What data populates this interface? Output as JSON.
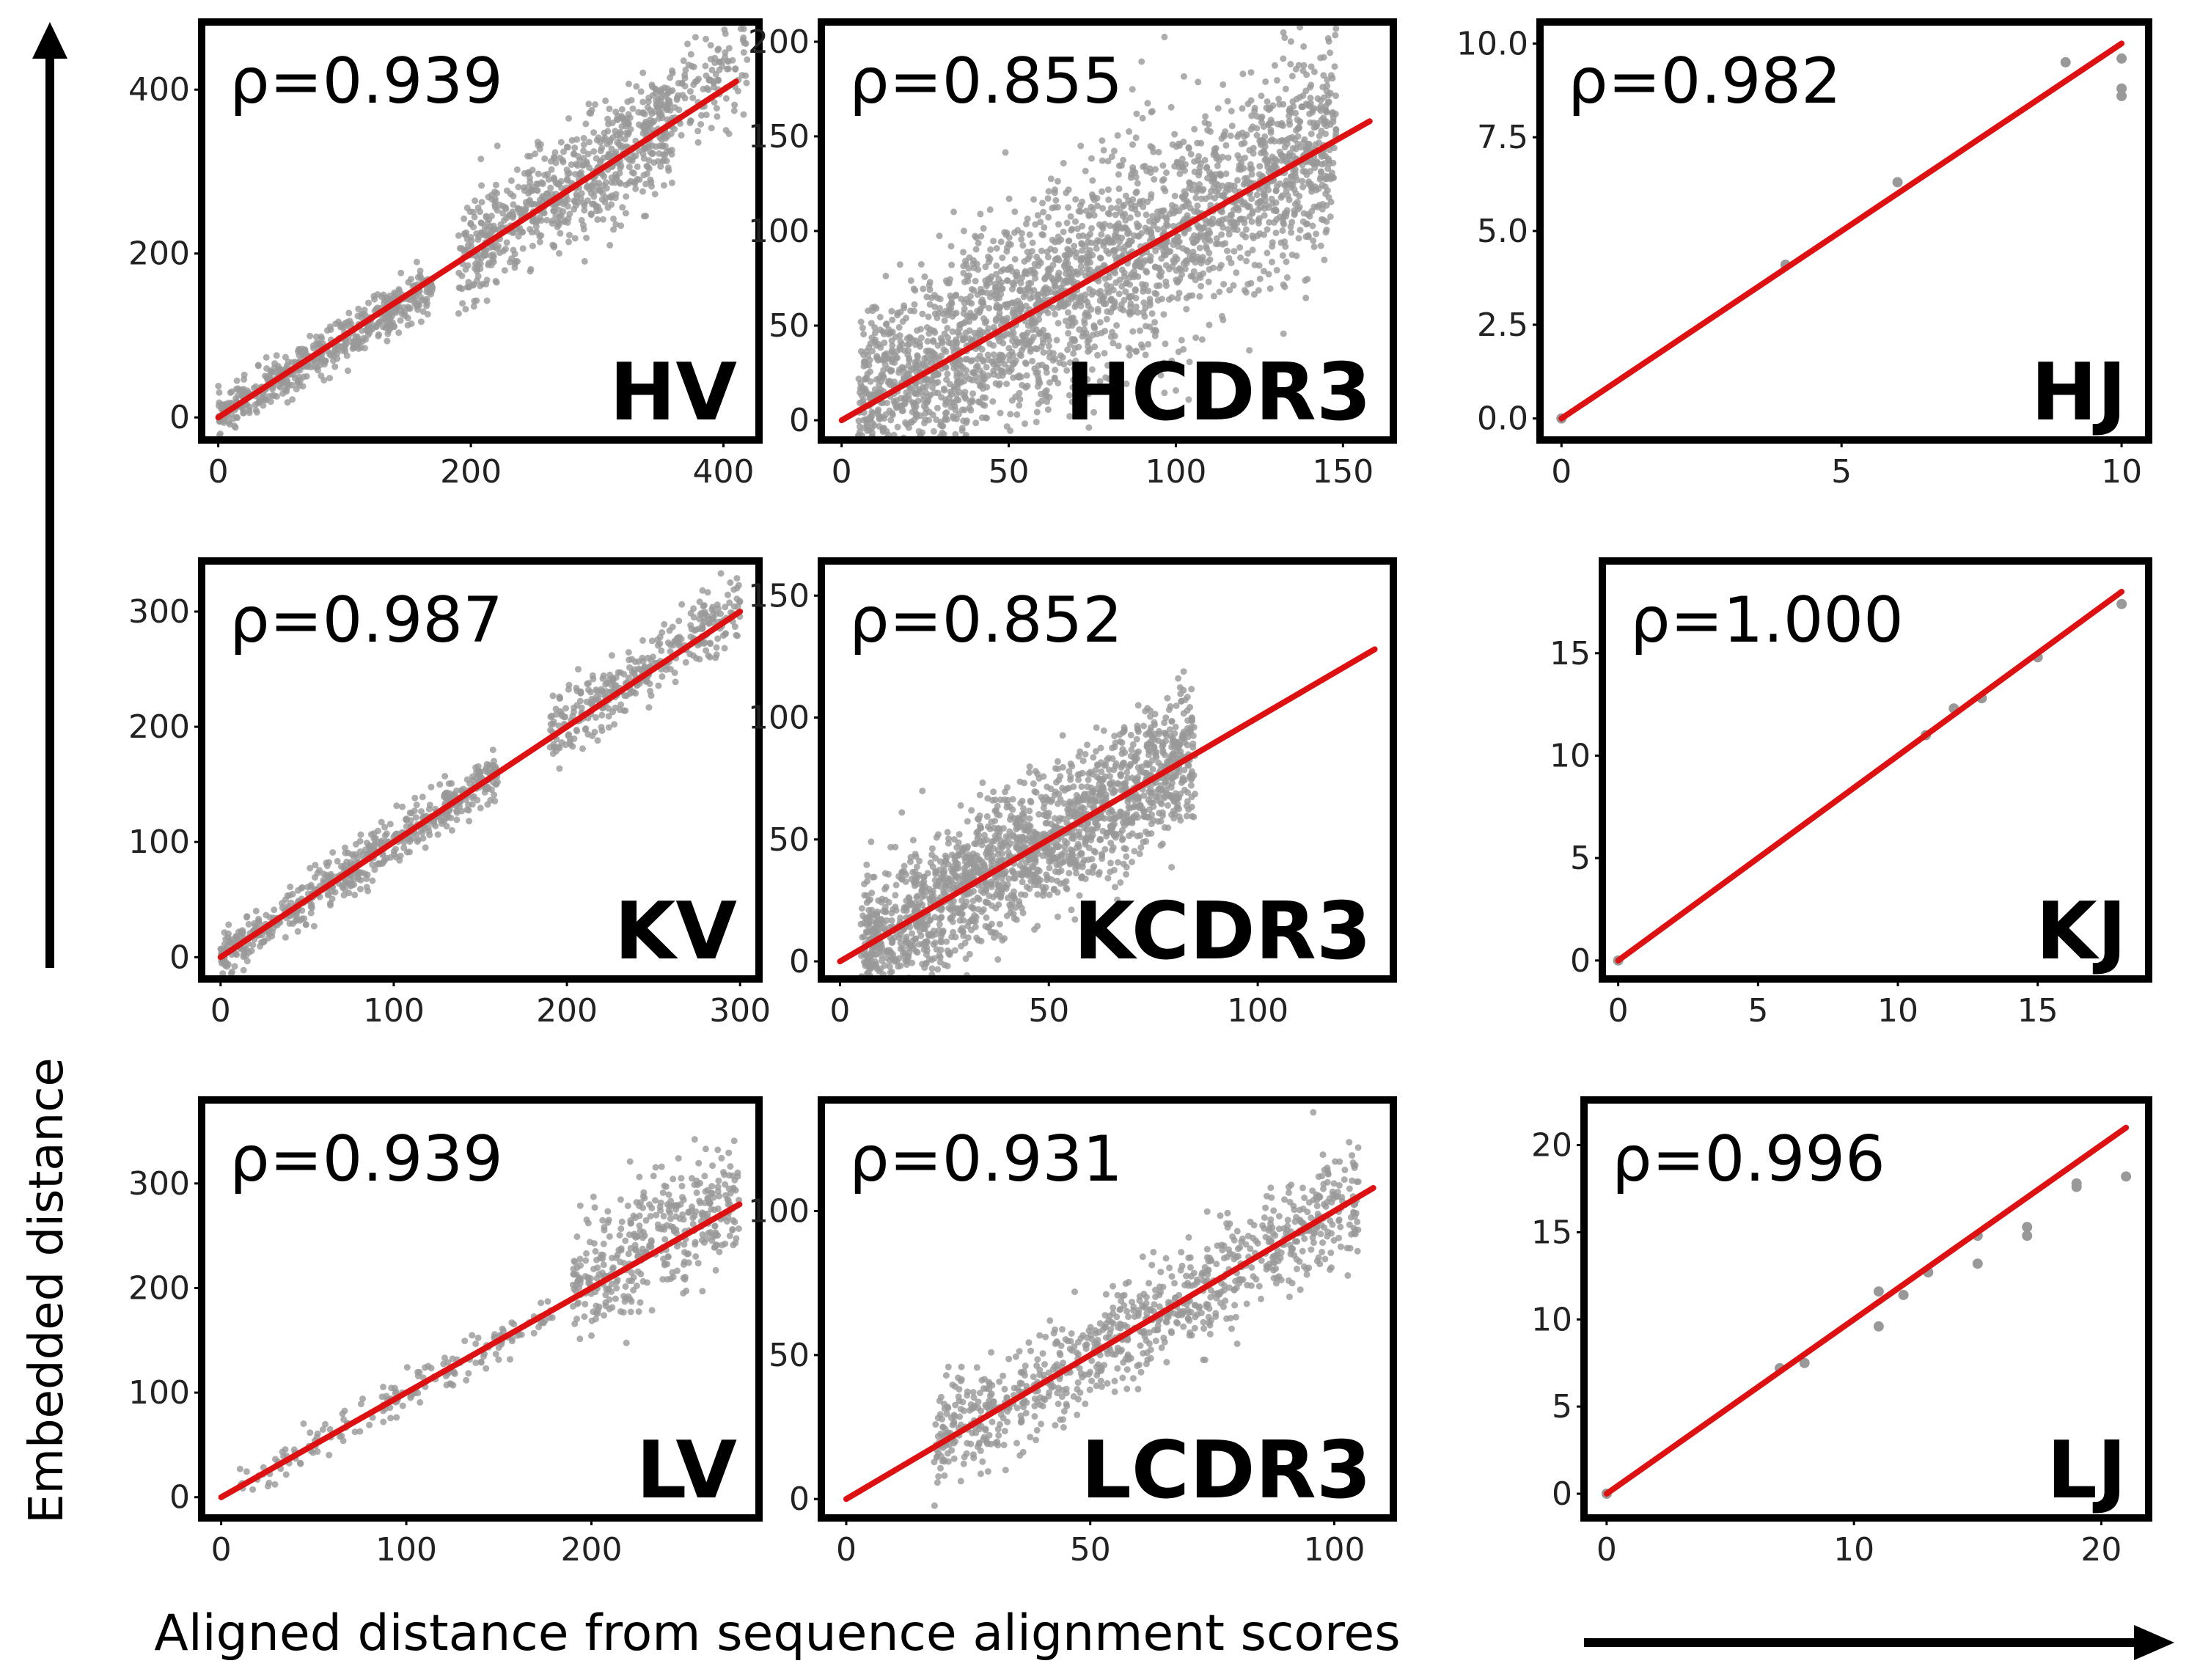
{
  "figure": {
    "ylabel": "Embedded distance",
    "xlabel": "Aligned distance from sequence alignment scores"
  },
  "colors": {
    "points": "#999999",
    "fit_line": "#dd1111",
    "frame": "#000000"
  },
  "chart_data": [
    {
      "type": "scatter",
      "label": "HV",
      "rho": "ρ=0.939",
      "xlim": [
        -5,
        420
      ],
      "ylim": [
        -15,
        470
      ],
      "xticks": [
        0,
        200,
        400
      ],
      "yticks": [
        0,
        200,
        400
      ],
      "fit": [
        [
          0,
          0
        ],
        [
          410,
          410
        ]
      ],
      "clouds": [
        {
          "x0": 0,
          "x1": 170,
          "spread": 14,
          "slope": 0.95,
          "n": 500
        },
        {
          "x0": 190,
          "x1": 360,
          "spread": 35,
          "slope": 1.0,
          "n": 700
        },
        {
          "x0": 340,
          "x1": 420,
          "spread": 30,
          "slope": 1.05,
          "n": 150
        }
      ]
    },
    {
      "type": "scatter",
      "label": "HCDR3",
      "rho": "ρ=0.855",
      "xlim": [
        -3,
        162
      ],
      "ylim": [
        -5,
        205
      ],
      "xticks": [
        0,
        50,
        100,
        150
      ],
      "yticks": [
        0,
        50,
        100,
        150,
        200
      ],
      "fit": [
        [
          0,
          0
        ],
        [
          158,
          158
        ]
      ],
      "clouds": [
        {
          "x0": 5,
          "x1": 148,
          "spread": 28,
          "slope": 1.0,
          "n": 2600
        }
      ]
    },
    {
      "type": "scatter",
      "label": "HJ",
      "rho": "ρ=0.982",
      "xlim": [
        -0.2,
        10.3
      ],
      "ylim": [
        -0.3,
        10.3
      ],
      "xticks": [
        0,
        5,
        10
      ],
      "yticks": [
        0.0,
        2.5,
        5.0,
        7.5,
        10.0
      ],
      "ytick_labels": [
        "0.0",
        "2.5",
        "5.0",
        "7.5",
        "10.0"
      ],
      "fit": [
        [
          0,
          0
        ],
        [
          10,
          10
        ]
      ],
      "points": [
        [
          0,
          0
        ],
        [
          4,
          4.1
        ],
        [
          6,
          6.3
        ],
        [
          9,
          9.5
        ],
        [
          10,
          9.6
        ],
        [
          10,
          8.8
        ],
        [
          10,
          8.6
        ]
      ]
    },
    {
      "type": "scatter",
      "label": "KV",
      "rho": "ρ=0.987",
      "xlim": [
        -5,
        305
      ],
      "ylim": [
        -10,
        335
      ],
      "xticks": [
        0,
        100,
        200,
        300
      ],
      "yticks": [
        0,
        100,
        200,
        300
      ],
      "fit": [
        [
          0,
          0
        ],
        [
          300,
          300
        ]
      ],
      "clouds": [
        {
          "x0": 0,
          "x1": 160,
          "spread": 10,
          "slope": 1.0,
          "n": 600
        },
        {
          "x0": 190,
          "x1": 300,
          "spread": 14,
          "slope": 1.02,
          "n": 350
        }
      ]
    },
    {
      "type": "scatter",
      "label": "KCDR3",
      "rho": "ρ=0.852",
      "xlim": [
        -2,
        130
      ],
      "ylim": [
        -3,
        160
      ],
      "xticks": [
        0,
        50,
        100
      ],
      "yticks": [
        0,
        50,
        100,
        150
      ],
      "fit": [
        [
          0,
          0
        ],
        [
          128,
          128
        ]
      ],
      "clouds": [
        {
          "x0": 5,
          "x1": 85,
          "spread": 14,
          "slope": 1.0,
          "n": 1800
        }
      ]
    },
    {
      "type": "scatter",
      "label": "KJ",
      "rho": "ρ=1.000",
      "xlim": [
        -0.2,
        18.6
      ],
      "ylim": [
        -0.4,
        19.0
      ],
      "xticks": [
        0,
        5,
        10,
        15
      ],
      "yticks": [
        0,
        5,
        10,
        15
      ],
      "fit": [
        [
          0,
          0
        ],
        [
          18,
          18
        ]
      ],
      "points": [
        [
          0,
          0
        ],
        [
          11,
          11
        ],
        [
          12,
          12.3
        ],
        [
          13,
          12.8
        ],
        [
          15,
          14.8
        ],
        [
          18,
          17.4
        ]
      ]
    },
    {
      "type": "scatter",
      "label": "LV",
      "rho": "ρ=0.939",
      "xlim": [
        -5,
        285
      ],
      "ylim": [
        -10,
        370
      ],
      "xticks": [
        0,
        100,
        200
      ],
      "yticks": [
        0,
        100,
        200,
        300
      ],
      "fit": [
        [
          0,
          0
        ],
        [
          280,
          280
        ]
      ],
      "clouds": [
        {
          "x0": 10,
          "x1": 180,
          "spread": 10,
          "slope": 1.0,
          "n": 180
        },
        {
          "x0": 190,
          "x1": 280,
          "spread": 28,
          "slope": 1.05,
          "n": 400
        }
      ]
    },
    {
      "type": "scatter",
      "label": "LCDR3",
      "rho": "ρ=0.931",
      "xlim": [
        -3,
        110
      ],
      "ylim": [
        -3,
        135
      ],
      "xticks": [
        0,
        50,
        100
      ],
      "yticks": [
        0,
        50,
        100
      ],
      "fit": [
        [
          0,
          0
        ],
        [
          108,
          108
        ]
      ],
      "clouds": [
        {
          "x0": 18,
          "x1": 105,
          "spread": 9,
          "slope": 1.0,
          "n": 900
        }
      ]
    },
    {
      "type": "scatter",
      "label": "LJ",
      "rho": "ρ=0.996",
      "xlim": [
        -0.5,
        21.5
      ],
      "ylim": [
        -0.8,
        22.0
      ],
      "xticks": [
        0,
        10,
        20
      ],
      "yticks": [
        0,
        5,
        10,
        15,
        20
      ],
      "fit": [
        [
          0,
          0
        ],
        [
          21,
          21
        ]
      ],
      "points": [
        [
          0,
          0
        ],
        [
          7,
          7.2
        ],
        [
          8,
          7.5
        ],
        [
          11,
          11.6
        ],
        [
          11,
          9.6
        ],
        [
          12,
          11.4
        ],
        [
          13,
          12.7
        ],
        [
          15,
          14.8
        ],
        [
          15,
          13.2
        ],
        [
          17,
          15.3
        ],
        [
          17,
          14.8
        ],
        [
          19,
          17.6
        ],
        [
          19,
          17.8
        ],
        [
          21,
          18.2
        ]
      ]
    }
  ]
}
